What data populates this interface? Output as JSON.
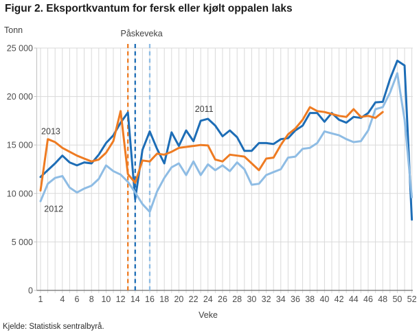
{
  "title": "Figur 2. Eksportkvantum for fersk eller kjølt oppalen laks",
  "source": "Kjelde: Statistisk sentralbyrå.",
  "chart_data": {
    "type": "line",
    "unit_label": "Tonn",
    "xlabel": "Veke",
    "annotation_label": "Påskeveka",
    "ylim": [
      0,
      25000
    ],
    "yticks": [
      0,
      5000,
      10000,
      15000,
      20000,
      25000
    ],
    "ytick_labels": [
      "0",
      "5 000",
      "10 000",
      "15 000",
      "20 000",
      "25 000"
    ],
    "xticks": [
      1,
      4,
      6,
      8,
      10,
      12,
      14,
      16,
      18,
      20,
      22,
      24,
      26,
      28,
      30,
      32,
      34,
      36,
      38,
      40,
      42,
      44,
      46,
      48,
      50,
      52
    ],
    "x_range_weeks": [
      1,
      52
    ],
    "grid": "both",
    "colors": {
      "blue_2011": "#1d6db6",
      "lightblue_2012": "#8ebce4",
      "orange_2013": "#ee7b22",
      "gridline": "#d9d9d9",
      "axis": "#6e6e6e",
      "minor_axis": "#c0c0c0",
      "label_text": "#404040",
      "tick_text": "#4c4c4c"
    },
    "easter_week_dashed_lines": [
      {
        "week": 13,
        "color": "#ee7b22"
      },
      {
        "week": 14,
        "color": "#1d6db6"
      },
      {
        "week": 16,
        "color": "#8ebce4"
      }
    ],
    "series": [
      {
        "name": "2011",
        "color": "#1d6db6",
        "start_week": 1,
        "values": [
          11700,
          12400,
          13100,
          13900,
          13200,
          12900,
          13200,
          13100,
          14000,
          15200,
          16000,
          17300,
          18350,
          9400,
          14500,
          16400,
          14600,
          13100,
          16300,
          14900,
          16500,
          15400,
          17500,
          17700,
          17000,
          15900,
          16500,
          15800,
          14400,
          14400,
          15200,
          15200,
          15100,
          15600,
          15700,
          16500,
          17000,
          18300,
          18300,
          17400,
          18300,
          17600,
          17300,
          17900,
          17800,
          18300,
          19400,
          19450,
          21800,
          23700,
          23200,
          7300
        ]
      },
      {
        "name": "2012",
        "color": "#8ebce4",
        "start_week": 1,
        "values": [
          9200,
          11000,
          11600,
          11800,
          10600,
          10100,
          10500,
          10800,
          11500,
          12900,
          12300,
          11950,
          11200,
          10100,
          8900,
          8100,
          10200,
          11600,
          12700,
          13100,
          11900,
          13300,
          11900,
          13000,
          12400,
          12900,
          12300,
          13200,
          12500,
          10900,
          11000,
          11900,
          12200,
          12500,
          13700,
          13800,
          14600,
          14700,
          15200,
          16400,
          16200,
          16000,
          15600,
          15300,
          15400,
          16500,
          18700,
          18900,
          20400,
          22400,
          17600,
          9600
        ]
      },
      {
        "name": "2013",
        "color": "#ee7b22",
        "start_week": 1,
        "values": [
          10300,
          15600,
          15300,
          14700,
          14300,
          13900,
          13600,
          13300,
          13500,
          14200,
          15400,
          18500,
          12000,
          11100,
          13400,
          13300,
          14100,
          14000,
          14300,
          14700,
          14800,
          14900,
          15000,
          14950,
          13500,
          13300,
          14000,
          13900,
          13800,
          13100,
          12400,
          13600,
          13700,
          15000,
          16100,
          16700,
          17600,
          18900,
          18500,
          18400,
          18200,
          18000,
          17900,
          18700,
          17900,
          18000,
          17800,
          18400
        ]
      }
    ],
    "series_labels": [
      {
        "text": "2013",
        "week": 1.1,
        "value": 16100
      },
      {
        "text": "2012",
        "week": 1.5,
        "value": 8100
      },
      {
        "text": "2011",
        "week": 22.2,
        "value": 18400
      }
    ]
  }
}
